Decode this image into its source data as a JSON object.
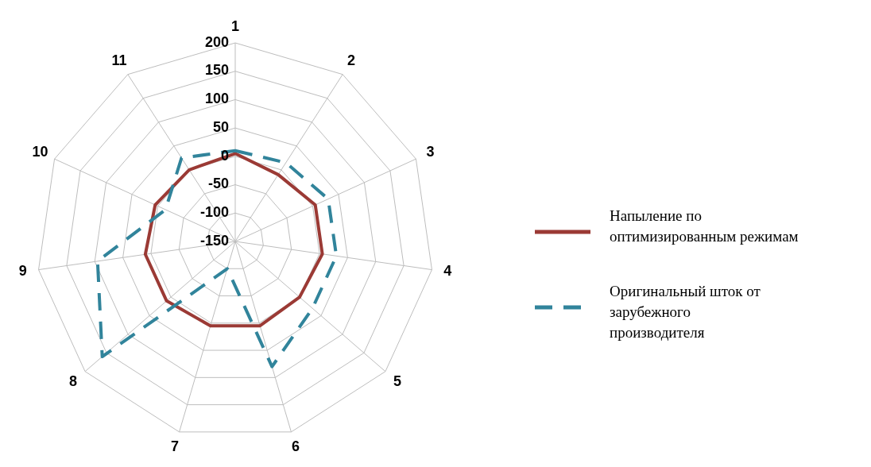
{
  "chart_data": {
    "type": "radar",
    "categories": [
      "1",
      "2",
      "3",
      "4",
      "5",
      "6",
      "7",
      "8",
      "9",
      "10",
      "11"
    ],
    "ylim": [
      -150,
      200
    ],
    "yticks": [
      -150,
      -100,
      -50,
      0,
      50,
      100,
      150,
      200
    ],
    "grid": true,
    "legend": "right",
    "marker": "none",
    "series": [
      {
        "name": "Напыление по оптимизированным режимам",
        "color": "#9b3a35",
        "line_style": "solid",
        "values": [
          5,
          -10,
          5,
          5,
          0,
          5,
          5,
          10,
          10,
          5,
          0
        ]
      },
      {
        "name": "Оригинальный шток от зарубежного производителя",
        "color": "#31849b",
        "line_style": "dashed",
        "values": [
          10,
          15,
          30,
          30,
          30,
          80,
          -100,
          160,
          95,
          -15,
          25
        ]
      }
    ]
  }
}
